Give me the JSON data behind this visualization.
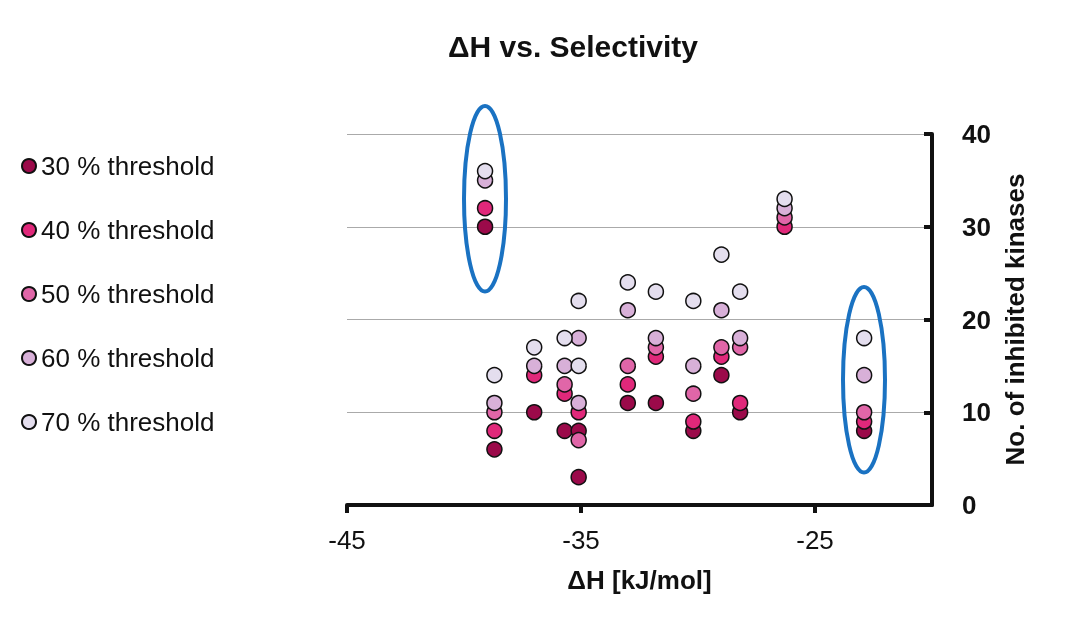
{
  "chart_data": {
    "type": "scatter",
    "title": "ΔH vs. Selectivity",
    "xlabel": "ΔH [kJ/mol]",
    "ylabel": "No. of inhibited kinases",
    "xlim": [
      -45,
      -20
    ],
    "xticks": [
      -45,
      -35,
      -25
    ],
    "ylim": [
      0,
      40
    ],
    "yticks": [
      0,
      10,
      20,
      30,
      40
    ],
    "grid": "y",
    "legend": "left",
    "marker": "circle",
    "series": [
      {
        "name": "30 % threshold",
        "color": "#9b0a4a",
        "x": [
          -39.1,
          -38.7,
          -37.0,
          -35.7,
          -35.1,
          -35.1,
          -33.0,
          -31.8,
          -30.2,
          -29.0,
          -28.2,
          -22.9
        ],
        "values": [
          30,
          6,
          10,
          8,
          8,
          3,
          11,
          11,
          8,
          14,
          10,
          8
        ]
      },
      {
        "name": "40 % threshold",
        "color": "#e0287a",
        "x": [
          -39.1,
          -38.7,
          -37.0,
          -35.7,
          -35.1,
          -33.0,
          -31.8,
          -30.2,
          -29.0,
          -28.2,
          -26.3,
          -22.9
        ],
        "values": [
          32,
          8,
          14,
          12,
          10,
          13,
          16,
          9,
          16,
          11,
          30,
          9
        ]
      },
      {
        "name": "50 % threshold",
        "color": "#e066a8",
        "x": [
          -38.7,
          -35.7,
          -35.1,
          -33.0,
          -31.8,
          -30.2,
          -29.0,
          -28.2,
          -26.3,
          -22.9
        ],
        "values": [
          10,
          13,
          7,
          15,
          17,
          12,
          17,
          17,
          31,
          10
        ]
      },
      {
        "name": "60 % threshold",
        "color": "#d8b0d8",
        "x": [
          -39.1,
          -38.7,
          -37.0,
          -35.7,
          -35.1,
          -35.1,
          -33.0,
          -31.8,
          -30.2,
          -29.0,
          -28.2,
          -26.3,
          -22.9
        ],
        "values": [
          35,
          11,
          15,
          15,
          18,
          11,
          21,
          18,
          15,
          21,
          18,
          32,
          14
        ]
      },
      {
        "name": "70 % threshold",
        "color": "#e4deee",
        "x": [
          -39.1,
          -38.7,
          -37.0,
          -35.7,
          -35.1,
          -35.1,
          -33.0,
          -31.8,
          -30.2,
          -29.0,
          -28.2,
          -26.3,
          -22.9
        ],
        "values": [
          36,
          14,
          17,
          18,
          22,
          15,
          24,
          23,
          22,
          27,
          23,
          33,
          18
        ]
      }
    ]
  }
}
